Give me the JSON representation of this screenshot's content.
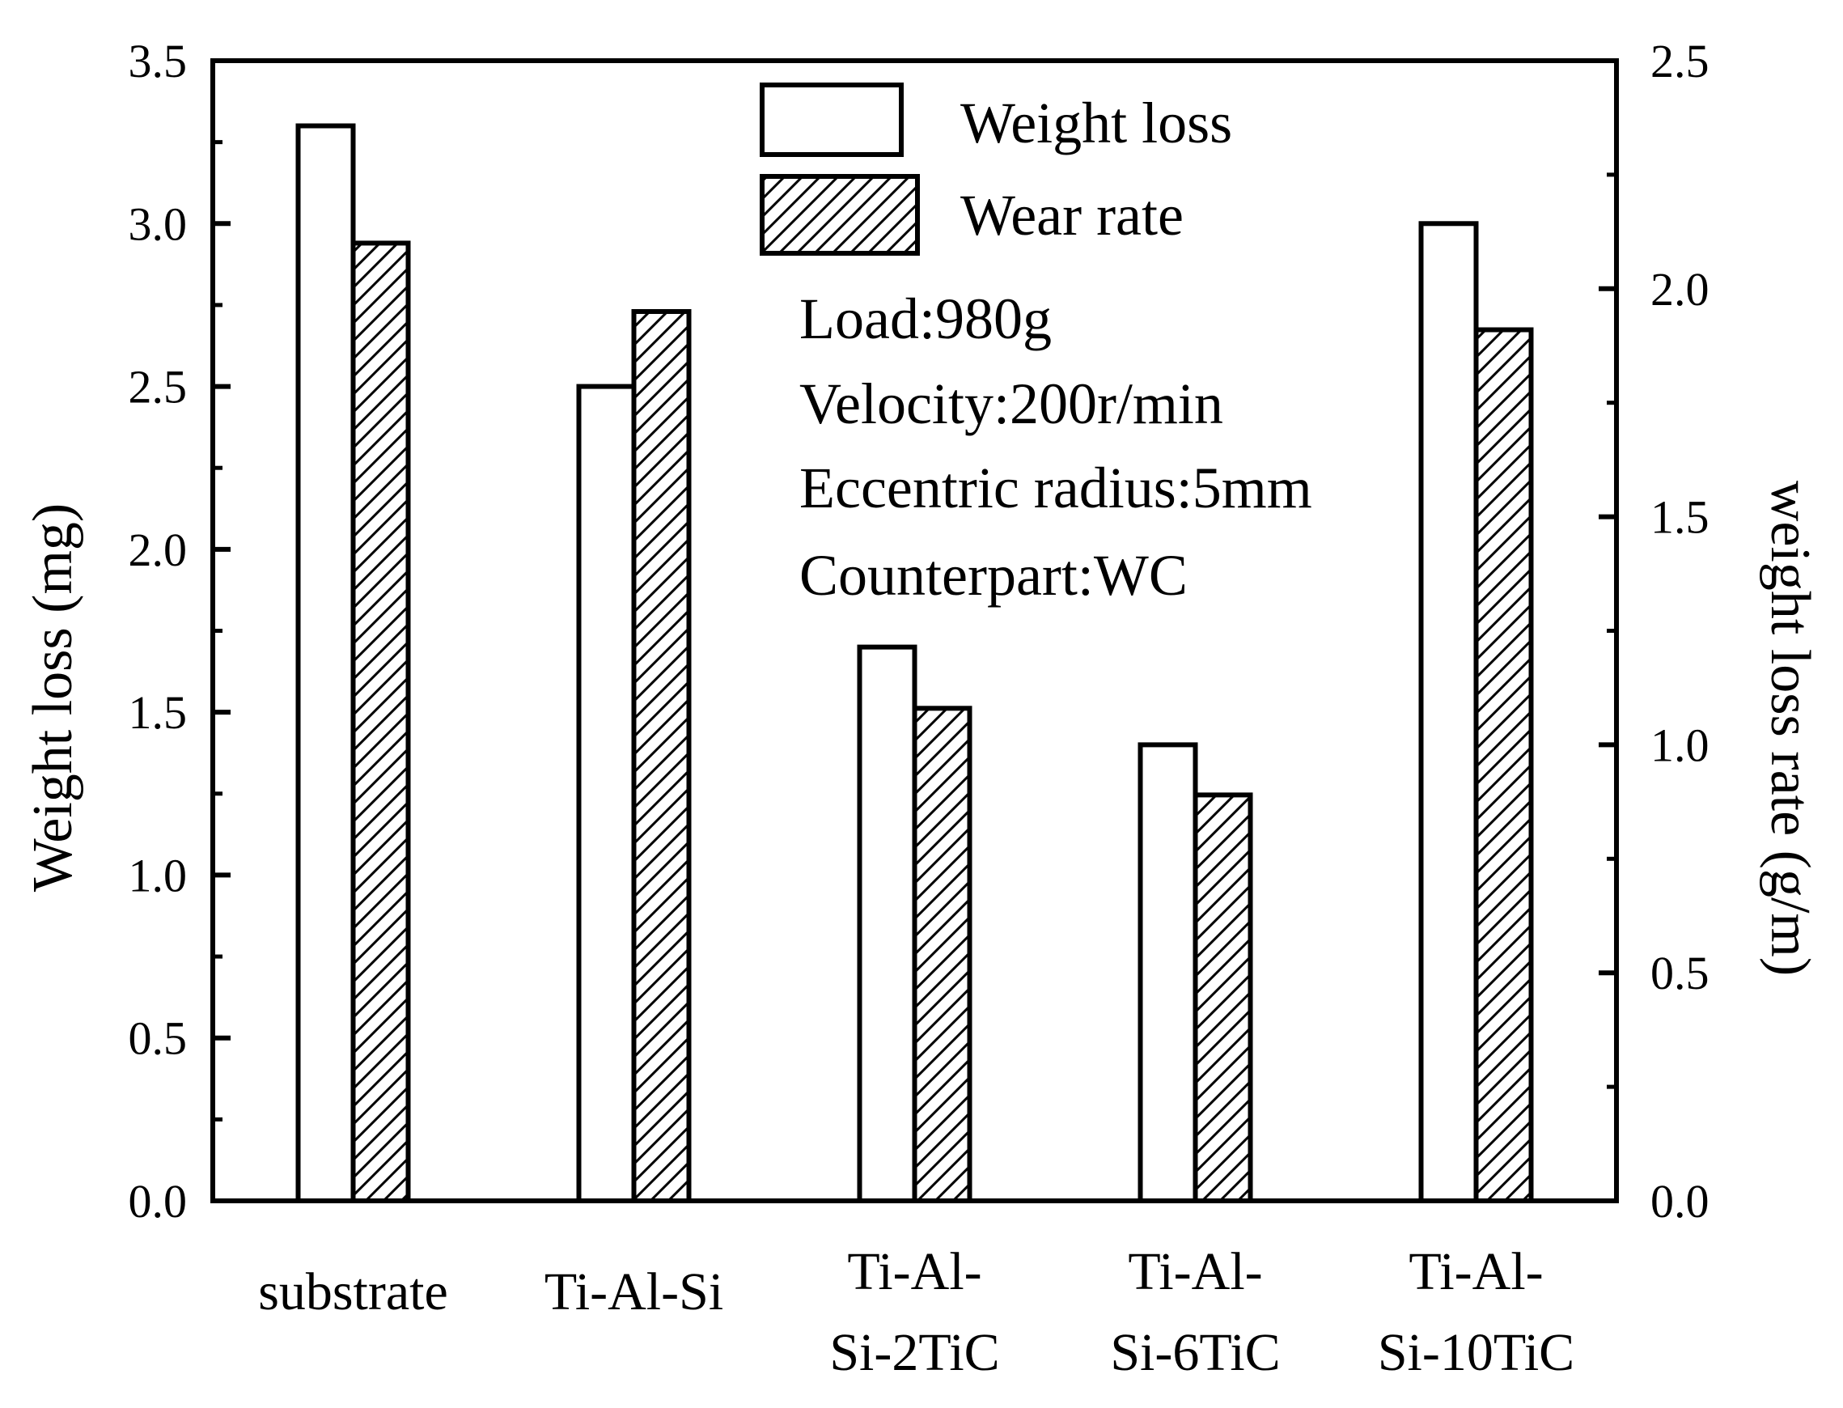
{
  "chart_data": {
    "type": "bar",
    "title": "",
    "categories": [
      [
        "substrate"
      ],
      [
        "Ti-Al-Si"
      ],
      [
        "Ti-Al-",
        "Si-2TiC"
      ],
      [
        "Ti-Al-",
        "Si-6TiC"
      ],
      [
        "Ti-Al-",
        "Si-10TiC"
      ]
    ],
    "series": [
      {
        "name": "Weight loss",
        "axis": "left",
        "pattern": "none",
        "values": [
          3.3,
          2.5,
          1.7,
          1.4,
          3.0
        ]
      },
      {
        "name": "Wear rate",
        "axis": "right",
        "pattern": "hatch",
        "values": [
          2.1,
          1.95,
          1.08,
          0.89,
          1.91
        ]
      }
    ],
    "left_axis": {
      "label": "Weight loss (mg)",
      "ylim": [
        0,
        3.5
      ],
      "ticks": [
        "0.0",
        "0.5",
        "1.0",
        "1.5",
        "2.0",
        "2.5",
        "3.0",
        "3.5"
      ]
    },
    "right_axis": {
      "label": "weight loss rate (g/m)",
      "ylim": [
        0,
        2.5
      ],
      "ticks": [
        "0.0",
        "0.5",
        "1.0",
        "1.5",
        "2.0",
        "2.5"
      ]
    },
    "legend": {
      "placement": "top-center",
      "entries": [
        "Weight loss",
        "Wear rate"
      ]
    },
    "annotations": [
      "Load:980g",
      "Velocity:200r/min",
      "Eccentric radius:5mm",
      "Counterpart:WC"
    ]
  }
}
